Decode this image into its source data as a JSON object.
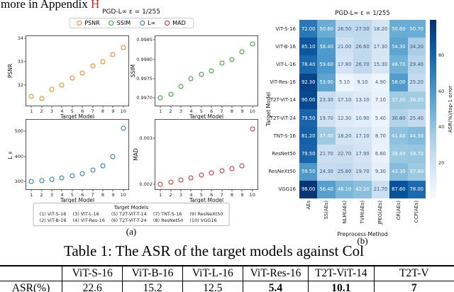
{
  "top_text": {
    "prefix": "more in Appendix ",
    "link": "H",
    "link_color": "#e02417"
  },
  "figure_a": {
    "sublabel": "(a)",
    "legend": [
      {
        "label": "PSNR",
        "color": "#ff7f0e"
      },
      {
        "label": "SSIM",
        "color": "#2ca02c"
      },
      {
        "label": "L∞",
        "color": "#1f77b4"
      },
      {
        "label": "MAD",
        "color": "#d62728"
      }
    ],
    "models_legend": {
      "title": "Target Models",
      "columns": [
        [
          "(1) ViT-S-16",
          "(2) ViT-B-16"
        ],
        [
          "(3) ViT-L-16",
          "(4) ViT-Res-16"
        ],
        [
          "(5) T2T-ViT-T-14",
          "(6) T2T-ViT-T-24"
        ],
        [
          "(7) TNT-S-16",
          "(8) ResNet50"
        ],
        [
          "(9) ResNeXt50",
          "(10) VGG16"
        ]
      ]
    }
  },
  "figure_b": {
    "sublabel": "(b)"
  },
  "chart_data": [
    {
      "type": "scatter",
      "title": "PGD-L∞ ε = 1/255",
      "ylabel": "PSNR",
      "xlabel": "Target Model",
      "x": [
        1,
        2,
        3,
        4,
        5,
        6,
        7,
        8,
        9,
        10
      ],
      "values": [
        31.5,
        31.4,
        31.8,
        32.0,
        32.3,
        32.5,
        32.8,
        33.0,
        33.3,
        33.6
      ],
      "ylim": [
        31.1,
        34.1
      ],
      "yticks": [
        [
          32,
          "32"
        ],
        [
          33,
          "33"
        ],
        [
          34,
          "34"
        ]
      ],
      "color": "#ff7f0e"
    },
    {
      "type": "scatter",
      "ylabel": "SSIM",
      "xlabel": "Target Model",
      "x": [
        1,
        2,
        3,
        4,
        5,
        6,
        7,
        8,
        9,
        10
      ],
      "values": [
        0.997,
        0.9971,
        0.9973,
        0.9975,
        0.9976,
        0.9977,
        0.9979,
        0.998,
        0.9982,
        0.9984
      ],
      "ylim": [
        0.9968,
        0.9986
      ],
      "yticks": [
        [
          0.997,
          "0.9970"
        ],
        [
          0.9975,
          "0.9975"
        ],
        [
          0.998,
          "0.9980"
        ],
        [
          0.9985,
          "0.9985"
        ]
      ],
      "color": "#2ca02c"
    },
    {
      "type": "scatter",
      "ylabel": "L∞",
      "xlabel": "Target Model",
      "x": [
        1,
        2,
        3,
        4,
        5,
        6,
        7,
        8,
        9,
        10
      ],
      "values": [
        300,
        305,
        310,
        315,
        322,
        332,
        345,
        362,
        400,
        510
      ],
      "ylim": [
        270,
        545
      ],
      "yticks": [
        [
          300,
          "300"
        ],
        [
          400,
          "400"
        ],
        [
          500,
          "500"
        ]
      ],
      "color": "#1f77b4"
    },
    {
      "type": "scatter",
      "ylabel": "MAD",
      "xlabel": "Target Model",
      "x": [
        1,
        2,
        3,
        4,
        5,
        6,
        7,
        8,
        9,
        10
      ],
      "values": [
        0.002,
        0.00205,
        0.0021,
        0.00215,
        0.0022,
        0.00225,
        0.0023,
        0.00235,
        0.0024,
        0.0032
      ],
      "ylim": [
        0.0019,
        0.0034
      ],
      "yticks": [
        [
          0.002,
          "0.002"
        ],
        [
          0.003,
          "0.003"
        ]
      ],
      "color": "#d62728"
    },
    {
      "type": "heatmap",
      "title": "PGD-L∞ ε = 1/255",
      "ylabel": "Target Model",
      "xlabel": "Preprocess Method",
      "rows": [
        "ViT-S-16",
        "ViT-B-16",
        "ViT-L-16",
        "ViT-Res-16",
        "T2T-ViT-14",
        "T2T-ViT-24",
        "TNT-S-16",
        "ResNet50",
        "ResNeXt50",
        "VGG16"
      ],
      "cols": [
        "AEs",
        "SS(AEs)",
        "NLM(AEs)",
        "TVM(AEs)",
        "JPEG(AEs)",
        "CR(AEs)",
        "CCP(AEs)"
      ],
      "values": [
        [
          72.0,
          50.6,
          26.5,
          27.5,
          18.2,
          50.6,
          50.7
        ],
        [
          85.1,
          58.4,
          21.0,
          26.6,
          17.3,
          54.3,
          34.2
        ],
        [
          78.4,
          59.6,
          17.8,
          26.7,
          15.3,
          48.7,
          29.4
        ],
        [
          92.3,
          53.9,
          5.1,
          9.1,
          4.9,
          58.0,
          25.2
        ],
        [
          90.0,
          23.3,
          17.1,
          13.1,
          7.1,
          37.3,
          36.2
        ],
        [
          79.5,
          19.7,
          12.3,
          10.9,
          5.4,
          30.8,
          25.4
        ],
        [
          81.2,
          37.4,
          18.2,
          17.1,
          8.7,
          41.4,
          44.3
        ],
        [
          79.5,
          21.7,
          22.7,
          17.9,
          6.6,
          38.4,
          39.7
        ],
        [
          59.5,
          24.3,
          25.8,
          19.7,
          9.3,
          43.3,
          37.8
        ],
        [
          98.0,
          56.4,
          46.1,
          42.2,
          21.7,
          87.6,
          78.0
        ]
      ],
      "vmin": 0,
      "vmax": 100,
      "colorbar_label": "ASR(%)/top-1 error",
      "colorbar_ticks": [
        20,
        40,
        60,
        80
      ]
    }
  ],
  "caption": "Table 1: The ASR of the target models against Col",
  "table": {
    "row_label": "ASR(%)",
    "columns": [
      "ViT-S-16",
      "ViT-B-16",
      "ViT-L-16",
      "ViT-Res-16",
      "T2T-ViT-14",
      "T2T-V"
    ],
    "values": [
      "22.6",
      "15.2",
      "12.5",
      "5.4",
      "10.1",
      "7"
    ],
    "bold": [
      false,
      false,
      false,
      true,
      true,
      true
    ]
  }
}
